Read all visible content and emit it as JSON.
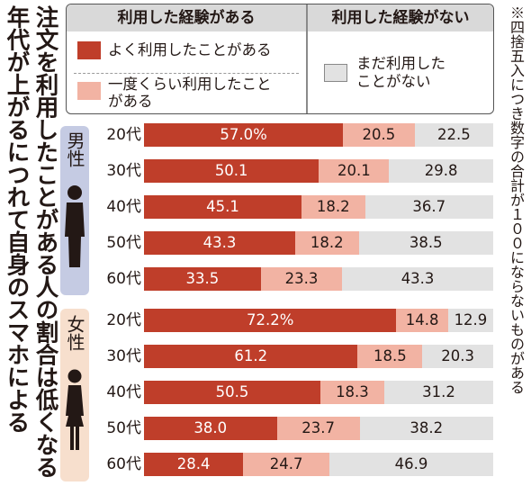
{
  "title": [
    "年代が上がるにつれて自身のスマホによる",
    "注文を利用したことがある人の割合は低くなる"
  ],
  "note": "※四捨五入につき数字の合計が１００にならないものがある",
  "legend": {
    "used_header": "利用した経験がある",
    "unused_header": "利用した経験がない",
    "often_label": "よく利用したことがある",
    "once_label_1": "一度くらい利用したこと",
    "once_label_2": "がある",
    "never_label_1": "まだ利用した",
    "never_label_2": "ことがない"
  },
  "groups": {
    "male": "男性",
    "female": "女性"
  },
  "colors": {
    "often": "#bf3e2a",
    "once": "#f2b3a3",
    "never": "#e2e2e2",
    "male_panel": "#c5cbe3",
    "female_panel": "#f7dfcd"
  },
  "icons": {
    "male": "man-figure-icon",
    "female": "woman-figure-icon"
  },
  "chart_data": {
    "type": "bar",
    "orientation": "horizontal",
    "stacked": true,
    "unit": "%",
    "categories": [
      "20代",
      "30代",
      "40代",
      "50代",
      "60代",
      "20代",
      "30代",
      "40代",
      "50代",
      "60代"
    ],
    "category_groups": [
      "男性",
      "男性",
      "男性",
      "男性",
      "男性",
      "女性",
      "女性",
      "女性",
      "女性",
      "女性"
    ],
    "series": [
      {
        "name": "よく利用したことがある",
        "values": [
          57.0,
          50.1,
          45.1,
          43.3,
          33.5,
          72.2,
          61.2,
          50.5,
          38.0,
          28.4
        ],
        "labels": [
          "57.0%",
          "50.1",
          "45.1",
          "43.3",
          "33.5",
          "72.2%",
          "61.2",
          "50.5",
          "38.0",
          "28.4"
        ]
      },
      {
        "name": "一度くらい利用したことがある",
        "values": [
          20.5,
          20.1,
          18.2,
          18.2,
          23.3,
          14.8,
          18.5,
          18.3,
          23.7,
          24.7
        ],
        "labels": [
          "20.5",
          "20.1",
          "18.2",
          "18.2",
          "23.3",
          "14.8",
          "18.5",
          "18.3",
          "23.7",
          "24.7"
        ]
      },
      {
        "name": "まだ利用したことがない",
        "values": [
          22.5,
          29.8,
          36.7,
          38.5,
          43.3,
          12.9,
          20.3,
          31.2,
          38.2,
          46.9
        ],
        "labels": [
          "22.5",
          "29.8",
          "36.7",
          "38.5",
          "43.3",
          "12.9",
          "20.3",
          "31.2",
          "38.2",
          "46.9"
        ]
      }
    ],
    "xlim": [
      0,
      100
    ],
    "legend_position": "top",
    "grid": false
  }
}
